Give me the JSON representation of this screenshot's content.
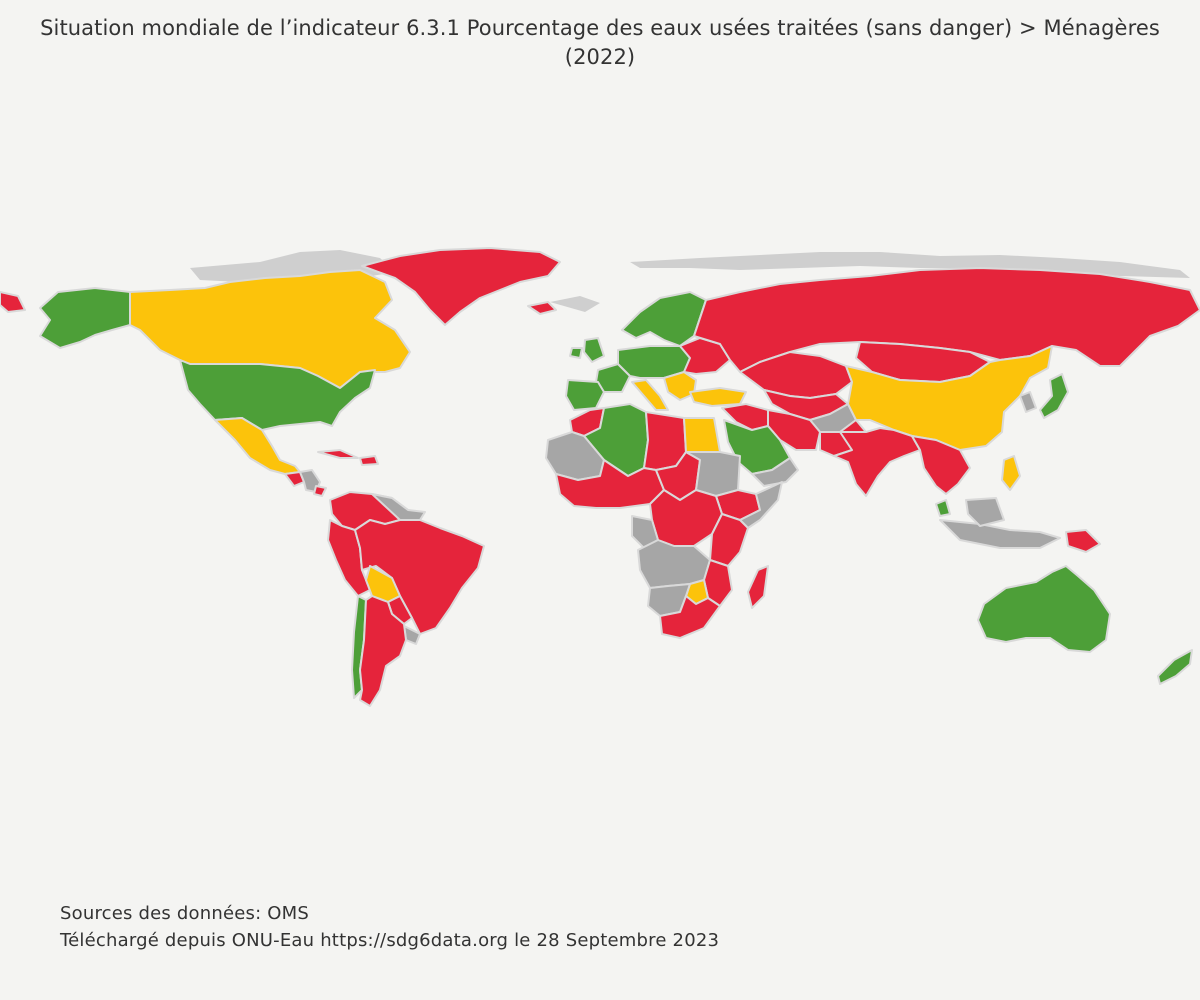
{
  "title": {
    "line1": "Situation mondiale de l’indicateur 6.3.1 Pourcentage des eaux usées traitées (sans danger) > Ménagères",
    "line2": "(2022)"
  },
  "sources": {
    "line1": "Sources des données: OMS",
    "line2": "Téléchargé depuis ONU-Eau https://sdg6data.org le 28 Septembre 2023"
  },
  "colors": {
    "green": "#4d9f38",
    "yellow": "#fcc30b",
    "red": "#e5243b",
    "no_data": "#a6a6a6",
    "background": "#f4f4f2"
  },
  "map": {
    "projection": "world",
    "legend": "none"
  }
}
